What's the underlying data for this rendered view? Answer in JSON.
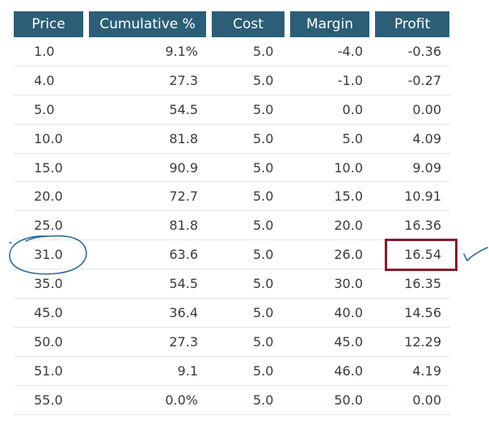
{
  "table": {
    "headers": [
      "Price",
      "Cumulative %",
      "Cost",
      "Margin",
      "Profit"
    ],
    "rows": [
      {
        "price": "1.0",
        "cum": "9.1%",
        "cost": "5.0",
        "margin": "-4.0",
        "profit": "-0.36"
      },
      {
        "price": "4.0",
        "cum": "27.3",
        "cost": "5.0",
        "margin": "-1.0",
        "profit": "-0.27"
      },
      {
        "price": "5.0",
        "cum": "54.5",
        "cost": "5.0",
        "margin": "0.0",
        "profit": "0.00"
      },
      {
        "price": "10.0",
        "cum": "81.8",
        "cost": "5.0",
        "margin": "5.0",
        "profit": "4.09"
      },
      {
        "price": "15.0",
        "cum": "90.9",
        "cost": "5.0",
        "margin": "10.0",
        "profit": "9.09"
      },
      {
        "price": "20.0",
        "cum": "72.7",
        "cost": "5.0",
        "margin": "15.0",
        "profit": "10.91"
      },
      {
        "price": "25.0",
        "cum": "81.8",
        "cost": "5.0",
        "margin": "20.0",
        "profit": "16.36"
      },
      {
        "price": "31.0",
        "cum": "63.6",
        "cost": "5.0",
        "margin": "26.0",
        "profit": "16.54"
      },
      {
        "price": "35.0",
        "cum": "54.5",
        "cost": "5.0",
        "margin": "30.0",
        "profit": "16.35"
      },
      {
        "price": "45.0",
        "cum": "36.4",
        "cost": "5.0",
        "margin": "40.0",
        "profit": "14.56"
      },
      {
        "price": "50.0",
        "cum": "27.3",
        "cost": "5.0",
        "margin": "45.0",
        "profit": "12.29"
      },
      {
        "price": "51.0",
        "cum": "9.1",
        "cost": "5.0",
        "margin": "46.0",
        "profit": "4.19"
      },
      {
        "price": "55.0",
        "cum": "0.0%",
        "cost": "5.0",
        "margin": "50.0",
        "profit": "0.00"
      }
    ]
  },
  "annotations": {
    "circled_row": 7,
    "boxed_row": 7,
    "box_color": "#8b1a2b",
    "ink_color": "#2f6aa0",
    "header_color": "#2c5e78"
  }
}
